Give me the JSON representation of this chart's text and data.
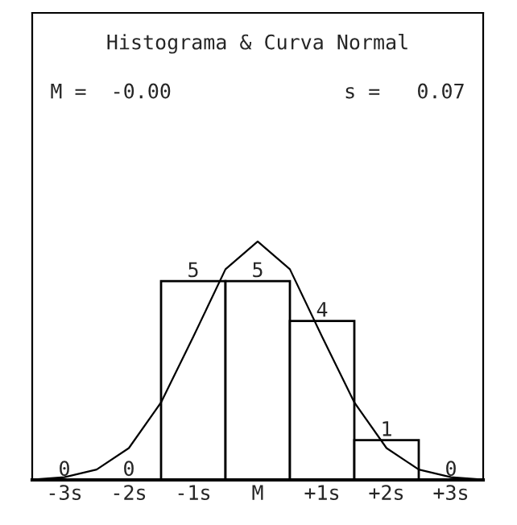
{
  "chart_data": {
    "type": "histogram",
    "title": "Histograma & Curva Normal",
    "annotations": [
      "M =  -0.00",
      "s =   0.07"
    ],
    "bins": [
      -3.5,
      -2.5,
      -1.5,
      -0.5,
      0.5,
      1.5,
      2.5,
      3.5
    ],
    "values": [
      0,
      0,
      5,
      5,
      4,
      1,
      0
    ],
    "value_labels": [
      "0",
      "0",
      "5",
      "5",
      "4",
      "1",
      "0"
    ],
    "color": "#ffffff",
    "series": [
      {
        "type": "line",
        "color": "#000000",
        "x": [
          -3.5,
          -3,
          -2.5,
          -2,
          -1.5,
          -1,
          -0.5,
          0,
          0.5,
          1,
          1.5,
          2,
          2.5,
          3,
          3.5
        ],
        "values": [
          0.01,
          0.07,
          0.26,
          0.8,
          1.95,
          3.6,
          5.3,
          6.0,
          5.3,
          3.6,
          1.95,
          0.8,
          0.26,
          0.07,
          0.01
        ]
      }
    ],
    "xlim": [
      -3.5,
      3.5
    ],
    "xticks": [
      {
        "value": -3,
        "label": "-3s"
      },
      {
        "value": -2,
        "label": "-2s"
      },
      {
        "value": -1,
        "label": "-1s"
      },
      {
        "value": 0,
        "label": "M"
      },
      {
        "value": 1,
        "label": "+1s"
      },
      {
        "value": 2,
        "label": "+2s"
      },
      {
        "value": 3,
        "label": "+3s"
      }
    ],
    "tick_labels": "x",
    "grid": false
  }
}
